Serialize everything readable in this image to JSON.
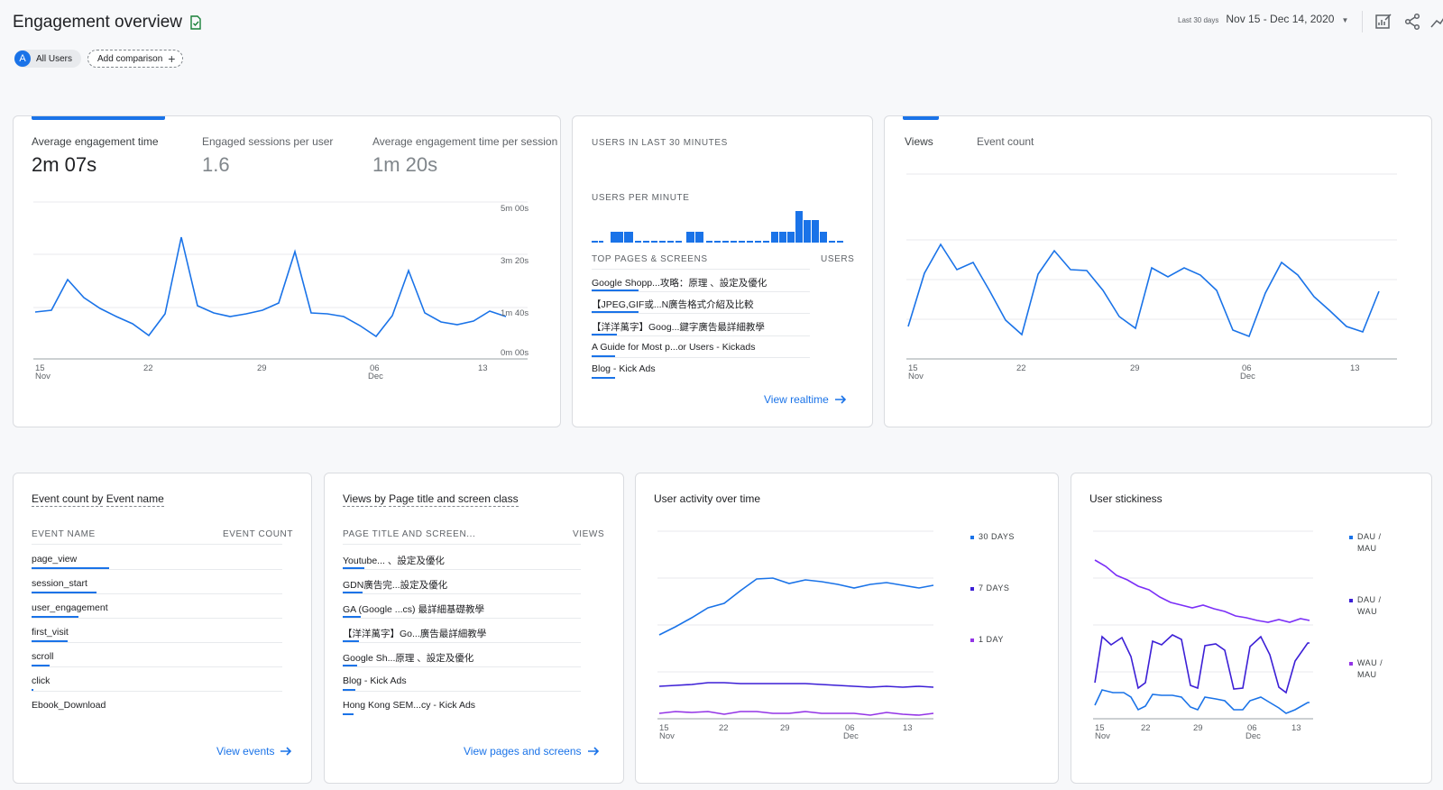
{
  "header": {
    "title": "Engagement overview",
    "chips": {
      "all_users_avatar": "A",
      "all_users": "All Users",
      "add_comparison": "Add comparison"
    },
    "date": {
      "label": "Last 30 days",
      "range": "Nov 15 - Dec 14, 2020"
    }
  },
  "colors": {
    "blue": "#1a73e8",
    "purple": "#7b2ff7",
    "violet": "#a142f4",
    "grid": "#e8eaed"
  },
  "engagement_card": {
    "metrics": [
      {
        "label": "Average engagement time",
        "value": "2m 07s"
      },
      {
        "label": "Engaged sessions per user",
        "value": "1.6"
      },
      {
        "label": "Average engagement time per session",
        "value": "1m 20s"
      }
    ],
    "y_ticks": [
      "5m 00s",
      "3m 20s",
      "1m 40s",
      "0m 00s"
    ],
    "x_ticks": [
      {
        "day": "15",
        "month": "Nov"
      },
      {
        "day": "22",
        "month": ""
      },
      {
        "day": "29",
        "month": ""
      },
      {
        "day": "06",
        "month": "Dec"
      },
      {
        "day": "13",
        "month": ""
      }
    ]
  },
  "realtime_card": {
    "title": "USERS IN LAST 30 MINUTES",
    "per_minute": "USERS PER MINUTE",
    "top_pages_header": "TOP PAGES & SCREENS",
    "users_header": "USERS",
    "pages": [
      "Google Shopp...攻略：原理 、設定及優化",
      "【JPEG,GIF或...N廣告格式介紹及比較",
      "【洋洋萬字】Goog...鍵字廣告最詳細教學",
      "A Guide for Most p...or Users - Kickads",
      "Blog - Kick Ads"
    ],
    "link": "View realtime"
  },
  "views_card": {
    "tabs": [
      "Views",
      "Event count"
    ],
    "x_ticks": [
      {
        "day": "15",
        "month": "Nov"
      },
      {
        "day": "22",
        "month": ""
      },
      {
        "day": "29",
        "month": ""
      },
      {
        "day": "06",
        "month": "Dec"
      },
      {
        "day": "13",
        "month": ""
      }
    ]
  },
  "events_card": {
    "title_a": "Event count by",
    "title_b": "Event name",
    "col1": "EVENT NAME",
    "col2": "EVENT COUNT",
    "rows": [
      "page_view",
      "session_start",
      "user_engagement",
      "first_visit",
      "scroll",
      "click",
      "Ebook_Download"
    ],
    "link": "View events"
  },
  "pages_card": {
    "title_a": "Views by",
    "title_b": "Page title and screen class",
    "col1": "PAGE TITLE AND SCREEN...",
    "col2": "VIEWS",
    "rows": [
      "Youtube... 、設定及優化",
      "GDN廣告完...設定及優化",
      "GA (Google ...cs) 最詳細基礎教學",
      "【洋洋萬字】Go...廣告最詳細教學",
      "Google Sh...原理 、設定及優化",
      "Blog - Kick Ads",
      "Hong Kong SEM...cy - Kick Ads"
    ],
    "link": "View pages and screens"
  },
  "activity_card": {
    "title": "User activity over time",
    "legend": [
      "30 DAYS",
      "7 DAYS",
      "1 DAY"
    ],
    "x_ticks": [
      {
        "day": "15",
        "month": "Nov"
      },
      {
        "day": "22",
        "month": ""
      },
      {
        "day": "29",
        "month": ""
      },
      {
        "day": "06",
        "month": "Dec"
      },
      {
        "day": "13",
        "month": ""
      }
    ]
  },
  "stickiness_card": {
    "title": "User stickiness",
    "legend": [
      [
        "DAU /",
        "MAU"
      ],
      [
        "DAU /",
        "WAU"
      ],
      [
        "WAU /",
        "MAU"
      ]
    ],
    "x_ticks": [
      {
        "day": "15",
        "month": "Nov"
      },
      {
        "day": "22",
        "month": ""
      },
      {
        "day": "29",
        "month": ""
      },
      {
        "day": "06",
        "month": "Dec"
      },
      {
        "day": "13",
        "month": ""
      }
    ]
  }
}
